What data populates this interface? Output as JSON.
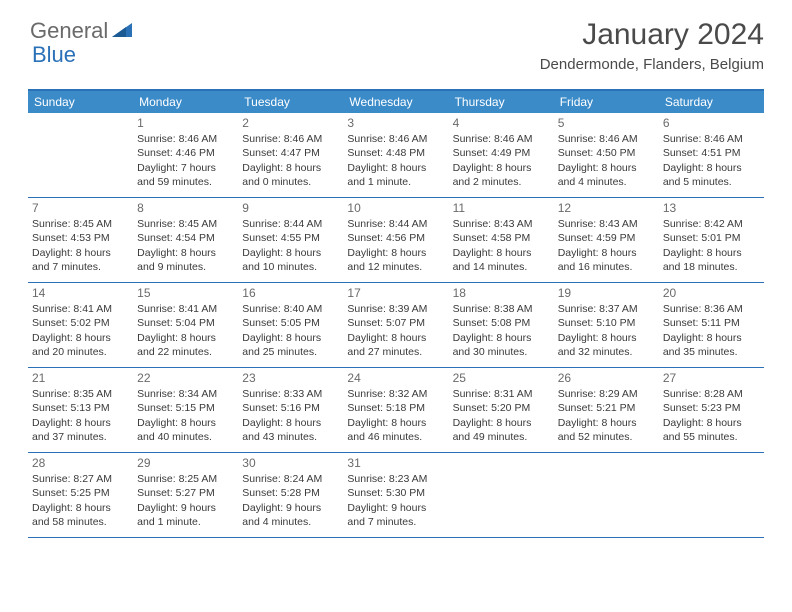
{
  "logo": {
    "text1": "General",
    "text2": "Blue"
  },
  "title": "January 2024",
  "location": "Dendermonde, Flanders, Belgium",
  "colors": {
    "header_bar": "#3b8bc9",
    "border": "#2a71b8",
    "weekday_text": "#ffffff",
    "body_text": "#3a3a3a",
    "daynum_text": "#6a6a6a",
    "logo_gray": "#6a6a6a",
    "logo_blue": "#2a71b8",
    "background": "#ffffff"
  },
  "weekdays": [
    "Sunday",
    "Monday",
    "Tuesday",
    "Wednesday",
    "Thursday",
    "Friday",
    "Saturday"
  ],
  "weeks": [
    [
      {
        "n": "",
        "sunrise": "",
        "sunset": "",
        "daylight": ""
      },
      {
        "n": "1",
        "sunrise": "Sunrise: 8:46 AM",
        "sunset": "Sunset: 4:46 PM",
        "daylight": "Daylight: 7 hours and 59 minutes."
      },
      {
        "n": "2",
        "sunrise": "Sunrise: 8:46 AM",
        "sunset": "Sunset: 4:47 PM",
        "daylight": "Daylight: 8 hours and 0 minutes."
      },
      {
        "n": "3",
        "sunrise": "Sunrise: 8:46 AM",
        "sunset": "Sunset: 4:48 PM",
        "daylight": "Daylight: 8 hours and 1 minute."
      },
      {
        "n": "4",
        "sunrise": "Sunrise: 8:46 AM",
        "sunset": "Sunset: 4:49 PM",
        "daylight": "Daylight: 8 hours and 2 minutes."
      },
      {
        "n": "5",
        "sunrise": "Sunrise: 8:46 AM",
        "sunset": "Sunset: 4:50 PM",
        "daylight": "Daylight: 8 hours and 4 minutes."
      },
      {
        "n": "6",
        "sunrise": "Sunrise: 8:46 AM",
        "sunset": "Sunset: 4:51 PM",
        "daylight": "Daylight: 8 hours and 5 minutes."
      }
    ],
    [
      {
        "n": "7",
        "sunrise": "Sunrise: 8:45 AM",
        "sunset": "Sunset: 4:53 PM",
        "daylight": "Daylight: 8 hours and 7 minutes."
      },
      {
        "n": "8",
        "sunrise": "Sunrise: 8:45 AM",
        "sunset": "Sunset: 4:54 PM",
        "daylight": "Daylight: 8 hours and 9 minutes."
      },
      {
        "n": "9",
        "sunrise": "Sunrise: 8:44 AM",
        "sunset": "Sunset: 4:55 PM",
        "daylight": "Daylight: 8 hours and 10 minutes."
      },
      {
        "n": "10",
        "sunrise": "Sunrise: 8:44 AM",
        "sunset": "Sunset: 4:56 PM",
        "daylight": "Daylight: 8 hours and 12 minutes."
      },
      {
        "n": "11",
        "sunrise": "Sunrise: 8:43 AM",
        "sunset": "Sunset: 4:58 PM",
        "daylight": "Daylight: 8 hours and 14 minutes."
      },
      {
        "n": "12",
        "sunrise": "Sunrise: 8:43 AM",
        "sunset": "Sunset: 4:59 PM",
        "daylight": "Daylight: 8 hours and 16 minutes."
      },
      {
        "n": "13",
        "sunrise": "Sunrise: 8:42 AM",
        "sunset": "Sunset: 5:01 PM",
        "daylight": "Daylight: 8 hours and 18 minutes."
      }
    ],
    [
      {
        "n": "14",
        "sunrise": "Sunrise: 8:41 AM",
        "sunset": "Sunset: 5:02 PM",
        "daylight": "Daylight: 8 hours and 20 minutes."
      },
      {
        "n": "15",
        "sunrise": "Sunrise: 8:41 AM",
        "sunset": "Sunset: 5:04 PM",
        "daylight": "Daylight: 8 hours and 22 minutes."
      },
      {
        "n": "16",
        "sunrise": "Sunrise: 8:40 AM",
        "sunset": "Sunset: 5:05 PM",
        "daylight": "Daylight: 8 hours and 25 minutes."
      },
      {
        "n": "17",
        "sunrise": "Sunrise: 8:39 AM",
        "sunset": "Sunset: 5:07 PM",
        "daylight": "Daylight: 8 hours and 27 minutes."
      },
      {
        "n": "18",
        "sunrise": "Sunrise: 8:38 AM",
        "sunset": "Sunset: 5:08 PM",
        "daylight": "Daylight: 8 hours and 30 minutes."
      },
      {
        "n": "19",
        "sunrise": "Sunrise: 8:37 AM",
        "sunset": "Sunset: 5:10 PM",
        "daylight": "Daylight: 8 hours and 32 minutes."
      },
      {
        "n": "20",
        "sunrise": "Sunrise: 8:36 AM",
        "sunset": "Sunset: 5:11 PM",
        "daylight": "Daylight: 8 hours and 35 minutes."
      }
    ],
    [
      {
        "n": "21",
        "sunrise": "Sunrise: 8:35 AM",
        "sunset": "Sunset: 5:13 PM",
        "daylight": "Daylight: 8 hours and 37 minutes."
      },
      {
        "n": "22",
        "sunrise": "Sunrise: 8:34 AM",
        "sunset": "Sunset: 5:15 PM",
        "daylight": "Daylight: 8 hours and 40 minutes."
      },
      {
        "n": "23",
        "sunrise": "Sunrise: 8:33 AM",
        "sunset": "Sunset: 5:16 PM",
        "daylight": "Daylight: 8 hours and 43 minutes."
      },
      {
        "n": "24",
        "sunrise": "Sunrise: 8:32 AM",
        "sunset": "Sunset: 5:18 PM",
        "daylight": "Daylight: 8 hours and 46 minutes."
      },
      {
        "n": "25",
        "sunrise": "Sunrise: 8:31 AM",
        "sunset": "Sunset: 5:20 PM",
        "daylight": "Daylight: 8 hours and 49 minutes."
      },
      {
        "n": "26",
        "sunrise": "Sunrise: 8:29 AM",
        "sunset": "Sunset: 5:21 PM",
        "daylight": "Daylight: 8 hours and 52 minutes."
      },
      {
        "n": "27",
        "sunrise": "Sunrise: 8:28 AM",
        "sunset": "Sunset: 5:23 PM",
        "daylight": "Daylight: 8 hours and 55 minutes."
      }
    ],
    [
      {
        "n": "28",
        "sunrise": "Sunrise: 8:27 AM",
        "sunset": "Sunset: 5:25 PM",
        "daylight": "Daylight: 8 hours and 58 minutes."
      },
      {
        "n": "29",
        "sunrise": "Sunrise: 8:25 AM",
        "sunset": "Sunset: 5:27 PM",
        "daylight": "Daylight: 9 hours and 1 minute."
      },
      {
        "n": "30",
        "sunrise": "Sunrise: 8:24 AM",
        "sunset": "Sunset: 5:28 PM",
        "daylight": "Daylight: 9 hours and 4 minutes."
      },
      {
        "n": "31",
        "sunrise": "Sunrise: 8:23 AM",
        "sunset": "Sunset: 5:30 PM",
        "daylight": "Daylight: 9 hours and 7 minutes."
      },
      {
        "n": "",
        "sunrise": "",
        "sunset": "",
        "daylight": ""
      },
      {
        "n": "",
        "sunrise": "",
        "sunset": "",
        "daylight": ""
      },
      {
        "n": "",
        "sunrise": "",
        "sunset": "",
        "daylight": ""
      }
    ]
  ]
}
